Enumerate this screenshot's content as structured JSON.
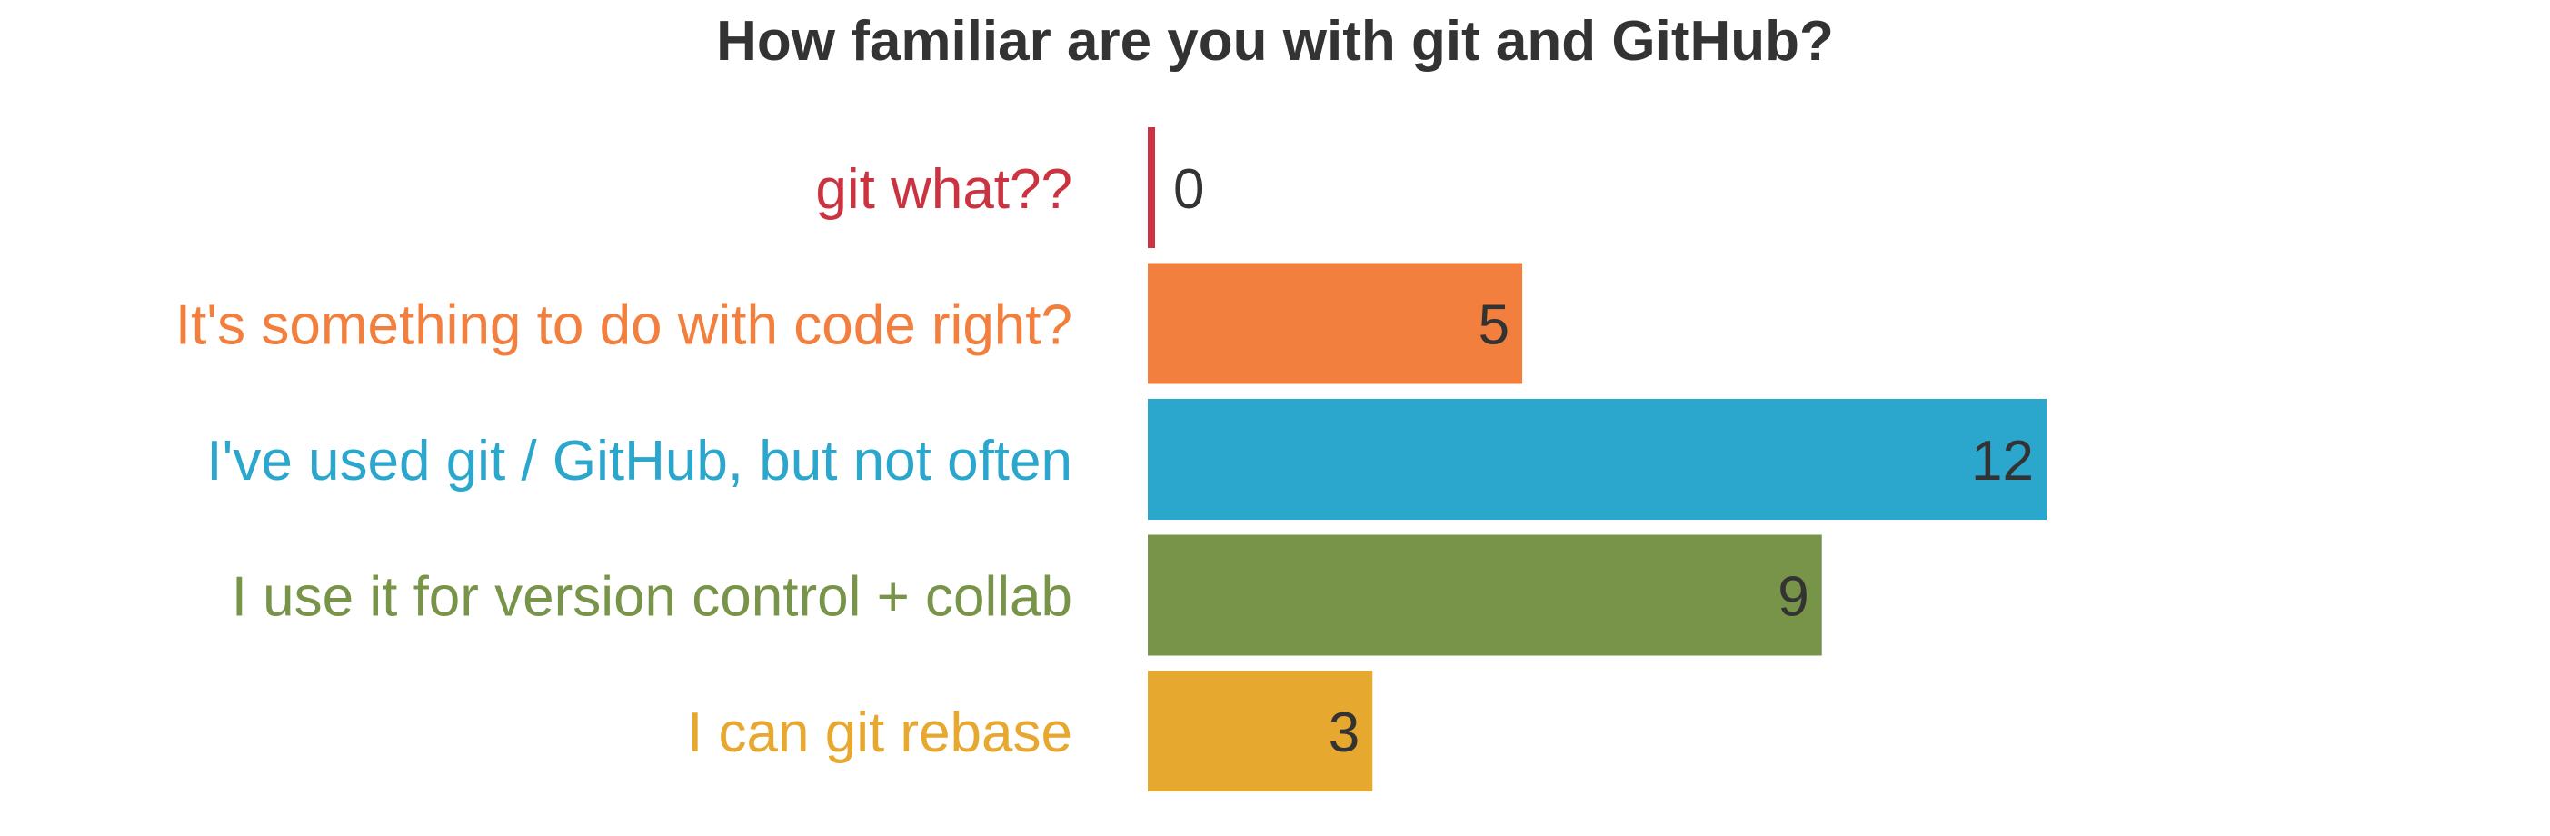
{
  "chart_data": {
    "type": "bar",
    "orientation": "horizontal",
    "title": "How familiar are you with git and GitHub?",
    "categories": [
      "git what??",
      "It's something to do with code right?",
      "I've used git / GitHub, but not often",
      "I use it for version control + collab",
      "I can git rebase"
    ],
    "values": [
      0,
      5,
      12,
      9,
      3
    ],
    "colors": [
      "#cc3340",
      "#f27f3d",
      "#2ba6cc",
      "#779448",
      "#e6a82e"
    ],
    "data_labels": [
      "0",
      "5",
      "12",
      "9",
      "3"
    ],
    "xlim": [
      0,
      12
    ],
    "grid": false,
    "axes_visible": false,
    "legend": "none",
    "label_color": "#333333"
  }
}
